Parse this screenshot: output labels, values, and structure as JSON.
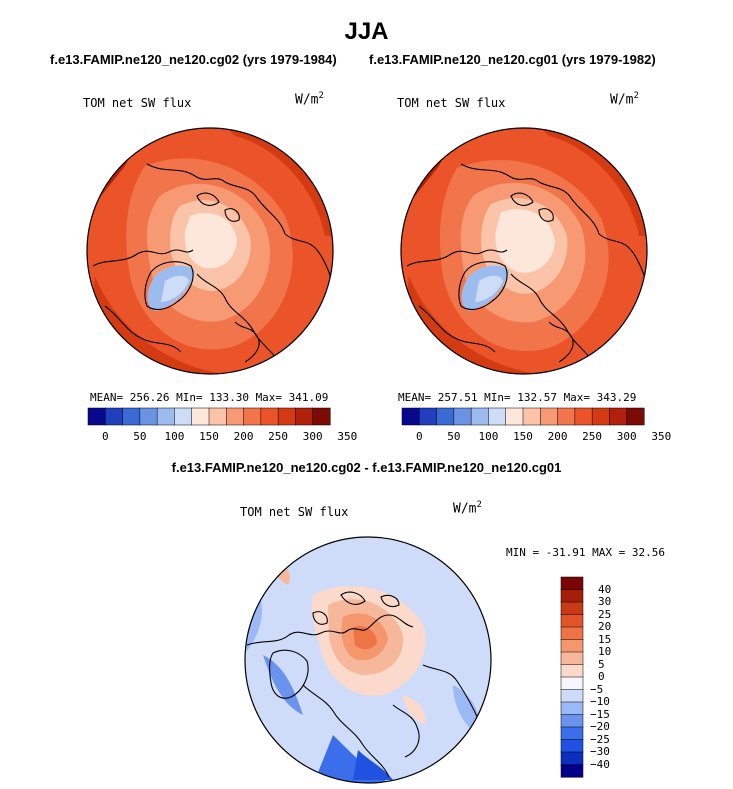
{
  "page": {
    "title": "JJA",
    "left_title": "f.e13.FAMIP.ne120_ne120.cg02 (yrs 1979-1984)",
    "right_title": "f.e13.FAMIP.ne120_ne120.cg01 (yrs 1979-1982)",
    "diff_title": "f.e13.FAMIP.ne120_ne120.cg02 - f.e13.FAMIP.ne120_ne120.cg01"
  },
  "colors": {
    "abs_palette": [
      "#08088c",
      "#1f3fbf",
      "#3a6ad4",
      "#6a93e2",
      "#9cbcf0",
      "#cdddf7",
      "#fde6da",
      "#fbc3a8",
      "#f79a73",
      "#f2744a",
      "#ea5428",
      "#d43b12",
      "#b0200a",
      "#7a0b05"
    ],
    "diff_palette": [
      "#00008b",
      "#0a2fbf",
      "#1f52e0",
      "#3a6eea",
      "#6a93ef",
      "#9bb9f5",
      "#cfdcf9",
      "#f5f5fb",
      "#fbdacb",
      "#f7b79a",
      "#f4976c",
      "#ee7445",
      "#e3542a",
      "#c83a14",
      "#a41e08",
      "#7a0505"
    ]
  },
  "chart_data": [
    {
      "type": "heatmap",
      "projection": "north-polar-stereographic",
      "title": "f.e13.FAMIP.ne120_ne120.cg02 (yrs 1979-1984)",
      "variable": "TOM net SW flux",
      "units_base": "W/m",
      "units_exp": "2",
      "stats": {
        "mean": 256.26,
        "min": 133.3,
        "max": 341.09
      },
      "stats_text": "MEAN= 256.26   MIn= 133.30   Max= 341.09",
      "colorbar_levels": [
        25,
        50,
        75,
        100,
        125,
        150,
        175,
        200,
        225,
        250,
        275,
        300,
        325
      ],
      "colorbar_tick_labels": [
        "0",
        "50",
        "100",
        "150",
        "200",
        "250",
        "300",
        "350"
      ]
    },
    {
      "type": "heatmap",
      "projection": "north-polar-stereographic",
      "title": "f.e13.FAMIP.ne120_ne120.cg01 (yrs 1979-1982)",
      "variable": "TOM net SW flux",
      "units_base": "W/m",
      "units_exp": "2",
      "stats": {
        "mean": 257.51,
        "min": 132.57,
        "max": 343.29
      },
      "stats_text": "MEAN= 257.51   MIn= 132.57   Max= 343.29",
      "colorbar_levels": [
        25,
        50,
        75,
        100,
        125,
        150,
        175,
        200,
        225,
        250,
        275,
        300,
        325
      ],
      "colorbar_tick_labels": [
        "0",
        "50",
        "100",
        "150",
        "200",
        "250",
        "300",
        "350"
      ]
    },
    {
      "type": "heatmap",
      "projection": "north-polar-stereographic",
      "title": "f.e13.FAMIP.ne120_ne120.cg02 - f.e13.FAMIP.ne120_ne120.cg01",
      "variable": "TOM net SW flux",
      "units_base": "W/m",
      "units_exp": "2",
      "stats": {
        "min": -31.91,
        "max": 32.56
      },
      "stats_text": "MIN = -31.91 MAX =  32.56",
      "colorbar_levels": [
        -40,
        -30,
        -25,
        -20,
        -15,
        -10,
        -5,
        0,
        5,
        10,
        15,
        20,
        25,
        30,
        40
      ],
      "colorbar_tick_labels": [
        "40",
        "30",
        "25",
        "20",
        "15",
        "10",
        "5",
        "0",
        "−5",
        "−10",
        "−15",
        "−20",
        "−25",
        "−30",
        "−40"
      ]
    }
  ]
}
